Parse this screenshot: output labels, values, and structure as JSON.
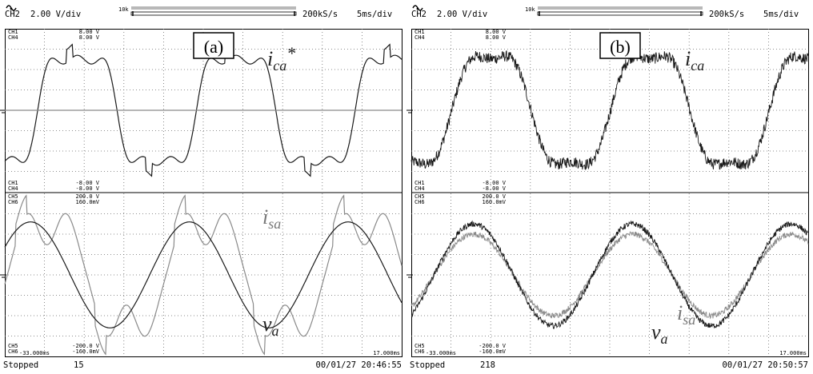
{
  "colors": {
    "trace_dark": "#1a1a1a",
    "trace_gray": "#8a8a8a",
    "grid": "#6a6a6a",
    "background": "#ffffff"
  },
  "header_icon": "waveform-icon",
  "panels": [
    {
      "label": "(a)",
      "header": {
        "channel": "CH2",
        "vdiv": "2.00 V/div",
        "memory": "10k",
        "sample_rate": "200kS/s",
        "timebase": "5ms/div"
      },
      "upper": {
        "scale_top": [
          {
            "ch": "CH1",
            "val": "8.00 V"
          },
          {
            "ch": "CH4",
            "val": "8.00 V"
          }
        ],
        "scale_bottom": [
          {
            "ch": "CH1",
            "val": "-8.00 V"
          },
          {
            "ch": "CH4",
            "val": "-8.00 V"
          }
        ],
        "annotations": [
          {
            "text": "i",
            "sub": "ca",
            "sup": "*"
          }
        ]
      },
      "lower": {
        "scale_top": [
          {
            "ch": "CH5",
            "val": "200.0 V"
          },
          {
            "ch": "CH6",
            "val": "160.0mV"
          }
        ],
        "scale_bottom": [
          {
            "ch": "CH5",
            "val": "-200.0 V"
          },
          {
            "ch": "CH6",
            "val": "-160.0mV"
          }
        ],
        "annotations": [
          {
            "text": "i",
            "sub": "sa",
            "sup": ""
          },
          {
            "text": "v",
            "sub": "a",
            "sup": ""
          }
        ]
      },
      "time_start": "-33.000ms",
      "time_end": "17.000ms",
      "footer": {
        "status": "Stopped",
        "count": "15",
        "timestamp": "00/01/27 20:46:55"
      }
    },
    {
      "label": "(b)",
      "header": {
        "channel": "CH2",
        "vdiv": "2.00 V/div",
        "memory": "10k",
        "sample_rate": "200kS/s",
        "timebase": "5ms/div"
      },
      "upper": {
        "scale_top": [
          {
            "ch": "CH1",
            "val": "8.00 V"
          },
          {
            "ch": "CH4",
            "val": "8.00 V"
          }
        ],
        "scale_bottom": [
          {
            "ch": "CH1",
            "val": "-8.00 V"
          },
          {
            "ch": "CH4",
            "val": "-8.00 V"
          }
        ],
        "annotations": [
          {
            "text": "i",
            "sub": "ca",
            "sup": ""
          }
        ]
      },
      "lower": {
        "scale_top": [
          {
            "ch": "CH5",
            "val": "200.0 V"
          },
          {
            "ch": "CH6",
            "val": "160.0mV"
          }
        ],
        "scale_bottom": [
          {
            "ch": "CH5",
            "val": "-200.0 V"
          },
          {
            "ch": "CH6",
            "val": "-160.0mV"
          }
        ],
        "annotations": [
          {
            "text": "i",
            "sub": "sa",
            "sup": ""
          },
          {
            "text": "v",
            "sub": "a",
            "sup": ""
          }
        ]
      },
      "time_start": "-33.000ms",
      "time_end": "17.000ms",
      "footer": {
        "status": "Stopped",
        "count": "218",
        "timestamp": "00/01/27 20:50:57"
      }
    }
  ],
  "chart_data": [
    {
      "type": "line",
      "panel": "(a)",
      "x_range_ms": [
        -33,
        17
      ],
      "x_unit": "ms",
      "frequency_hz": 50,
      "series": [
        {
          "name": "i_ca*",
          "trace": "upper",
          "color": "dark",
          "waveform": "compensating-reference",
          "amplitude_div": 3.6,
          "phase_deg": 0
        },
        {
          "name": "",
          "trace": "upper",
          "color": "gray",
          "waveform": "flat",
          "amplitude_div": 0.0
        },
        {
          "name": "i_sa",
          "trace": "lower",
          "color": "gray",
          "waveform": "distorted-source-current",
          "amplitude_div": 3.8
        },
        {
          "name": "v_a",
          "trace": "lower",
          "color": "dark",
          "waveform": "sine",
          "amplitude_div": 2.6
        }
      ]
    },
    {
      "type": "line",
      "panel": "(b)",
      "x_range_ms": [
        -33,
        17
      ],
      "x_unit": "ms",
      "frequency_hz": 50,
      "series": [
        {
          "name": "i_ca",
          "trace": "upper",
          "color": "dark",
          "waveform": "noisy-compensating-current",
          "amplitude_div": 3.6
        },
        {
          "name": "i_sa",
          "trace": "lower",
          "color": "gray",
          "waveform": "noisy-sine",
          "amplitude_div": 2.0
        },
        {
          "name": "v_a",
          "trace": "lower",
          "color": "dark",
          "waveform": "noisy-sine",
          "amplitude_div": 2.5
        }
      ]
    }
  ]
}
